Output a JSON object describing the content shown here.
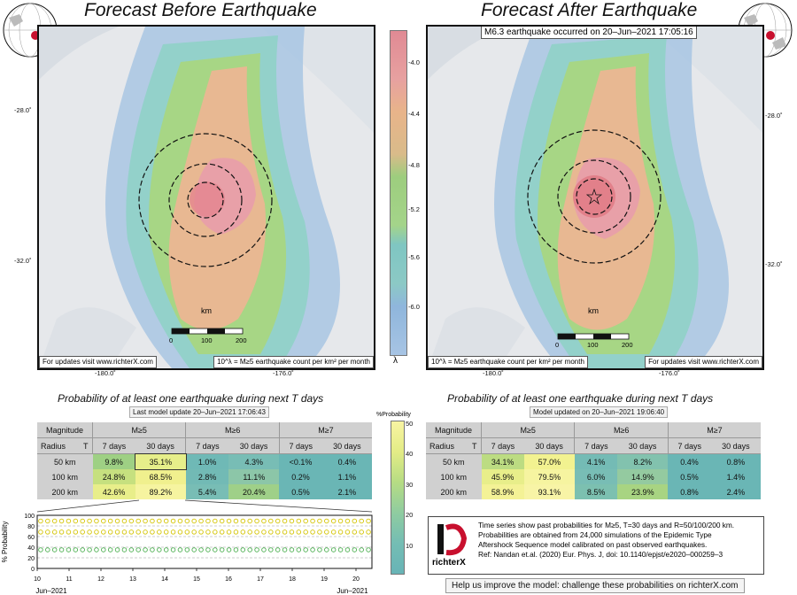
{
  "maps": {
    "before": {
      "title": "Forecast Before Earthquake",
      "footer_left": "For updates visit www.richterX.com",
      "footer_right": "10^λ = M≥5 earthquake count per km² per month",
      "scale_title": "km",
      "scale_ticks": [
        "0",
        "100",
        "200"
      ],
      "lat_labels": [
        "-28.0˚",
        "-32.0˚"
      ],
      "lon_labels": [
        "-180.0˚",
        "-176.0˚"
      ]
    },
    "after": {
      "title": "Forecast After Earthquake",
      "event_note": "M6.3 earthquake occurred on 20–Jun–2021 17:05:16",
      "footer_left": "10^λ = M≥5 earthquake count per km² per month",
      "footer_right": "For updates visit www.richterX.com",
      "scale_title": "km",
      "scale_ticks": [
        "0",
        "100",
        "200"
      ],
      "lat_labels": [
        "-28.0˚",
        "-32.0˚"
      ],
      "lon_labels": [
        "-180.0˚",
        "-176.0˚"
      ]
    }
  },
  "lambda_colorbar": {
    "ticks": [
      "-4.0",
      "-4.4",
      "-4.8",
      "-5.2",
      "-5.6",
      "-6.0"
    ],
    "symbol": "λ",
    "colors": [
      "#e08a94",
      "#e8b48a",
      "#9dcd7e",
      "#7fc6c2",
      "#8fb6dc"
    ]
  },
  "prob_left": {
    "title": "Probability of at least one earthquake during next T days",
    "subtitle": "Last model update 20–Jun–2021 17:06:43",
    "header_magnitude": "Magnitude",
    "mags": [
      "M≥5",
      "M≥6",
      "M≥7"
    ],
    "radius_label": "Radius",
    "t_label": "T",
    "periods": [
      "7 days",
      "30 days",
      "7 days",
      "30 days",
      "7 days",
      "30 days"
    ],
    "rows": [
      {
        "radius": "50 km",
        "cells": [
          "9.8%",
          "35.1%",
          "1.0%",
          "4.3%",
          "<0.1%",
          "0.4%"
        ]
      },
      {
        "radius": "100 km",
        "cells": [
          "24.8%",
          "68.5%",
          "2.8%",
          "11.1%",
          "0.2%",
          "1.1%"
        ]
      },
      {
        "radius": "200 km",
        "cells": [
          "42.6%",
          "89.2%",
          "5.4%",
          "20.4%",
          "0.5%",
          "2.1%"
        ]
      }
    ]
  },
  "prob_right": {
    "title": "Probability of at least one earthquake during next T days",
    "subtitle": "Model updated on 20–Jun–2021 19:06:40",
    "header_magnitude": "Magnitude",
    "mags": [
      "M≥5",
      "M≥6",
      "M≥7"
    ],
    "radius_label": "Radius",
    "t_label": "T",
    "periods": [
      "7 days",
      "30 days",
      "7 days",
      "30 days",
      "7 days",
      "30 days"
    ],
    "rows": [
      {
        "radius": "50 km",
        "cells": [
          "34.1%",
          "57.0%",
          "4.1%",
          "8.2%",
          "0.4%",
          "0.8%"
        ]
      },
      {
        "radius": "100 km",
        "cells": [
          "45.9%",
          "79.5%",
          "6.0%",
          "14.9%",
          "0.5%",
          "1.4%"
        ]
      },
      {
        "radius": "200 km",
        "cells": [
          "58.9%",
          "93.1%",
          "8.5%",
          "23.9%",
          "0.8%",
          "2.4%"
        ]
      }
    ]
  },
  "prob_colorbar": {
    "label": "%Probability",
    "ticks": [
      "50",
      "40",
      "30",
      "20",
      "10"
    ]
  },
  "chart_data": {
    "type": "scatter",
    "ylabel": "% Probability",
    "ylim": [
      0,
      100
    ],
    "yticks": [
      0,
      20,
      40,
      60,
      80,
      100
    ],
    "xticks": [
      "10",
      "11",
      "12",
      "13",
      "14",
      "15",
      "16",
      "17",
      "18",
      "19",
      "20"
    ],
    "x_start_label": "Jun–2021",
    "x_end_label": "Jun–2021",
    "xlim": [
      10,
      20.5
    ],
    "series": [
      {
        "radius": "50 km",
        "value": 35.1,
        "color": "#4caf50"
      },
      {
        "radius": "100 km",
        "value": 68.5,
        "color": "#d4c400"
      },
      {
        "radius": "200 km",
        "value": 89.2,
        "color": "#d4c400"
      }
    ],
    "grid": true
  },
  "info": {
    "logo_text": "richterX",
    "lines": [
      "Time series show past probabilities for M≥5, T=30 days and R=50/100/200 km.",
      "Probabilities are obtained from 24,000 simulations of the Epidemic Type",
      "Aftershock Sequence model calibrated on past observed earthquakes.",
      "Ref: Nandan et.al. (2020) Eur. Phys. J, doi: 10.1140/epjst/e2020–000259–3"
    ]
  },
  "help_text": "Help us improve the model: challenge these probabilities on richterX.com"
}
